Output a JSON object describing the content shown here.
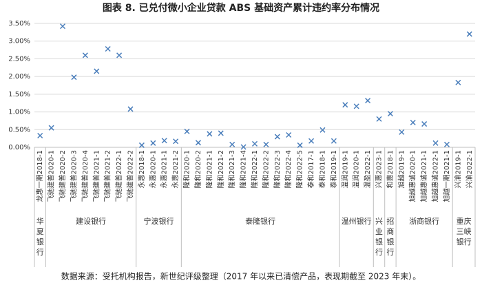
{
  "chart_data": {
    "type": "scatter",
    "title": "图表 8. 已兑付微小企业贷款 ABS 基础资产累计违约率分布情况",
    "source": "数据来源：受托机构报告，新世纪评级整理（2017 年以来已清偿产品，表现期截至 2023 年末）。",
    "color": "#4a7ebb",
    "ylim": [
      0,
      3.5
    ],
    "yticks": [
      {
        "value": 0,
        "label": "0.00%"
      },
      {
        "value": 0.5,
        "label": "0.50%"
      },
      {
        "value": 1,
        "label": "1.00%"
      },
      {
        "value": 1.5,
        "label": "1.50%"
      },
      {
        "value": 2,
        "label": "2.00%"
      },
      {
        "value": 2.5,
        "label": "2.50%"
      },
      {
        "value": 3,
        "label": "3.00%"
      },
      {
        "value": 3.5,
        "label": "3.50%"
      }
    ],
    "grid": true,
    "groups": [
      {
        "name": "华夏银行",
        "categories": [
          "龙惠一期2018-1"
        ],
        "values": [
          0.33
        ]
      },
      {
        "name": "建设银行",
        "categories": [
          "飞驰建普2020-1",
          "飞驰建普2020-2",
          "飞驰建普2020-3",
          "飞驰建普2020-4",
          "飞驰建普2021-1",
          "飞驰建普2021-2",
          "飞驰建普2022-1",
          "飞驰建普2022-2"
        ],
        "values": [
          0.55,
          3.42,
          1.98,
          2.6,
          2.15,
          2.78,
          2.6,
          1.08
        ]
      },
      {
        "name": "宁波银行",
        "categories": [
          "永惠2018-1",
          "永惠2020-1",
          "永惠2021-1",
          "永惠2021-2"
        ],
        "values": [
          0.06,
          0.12,
          0.19,
          0.17
        ]
      },
      {
        "name": "泰隆银行",
        "categories": [
          "隆和2020-1",
          "隆和2020-2",
          "隆和2021-1",
          "隆和2021-2",
          "隆和2021-3",
          "隆和2021-4",
          "隆和2022-1",
          "隆和2022-2",
          "隆和2022-3",
          "隆和2022-4",
          "隆和2022-5",
          "泰和2017-1",
          "泰和2018-1",
          "泰和2019-1"
        ],
        "values": [
          0.45,
          0.13,
          0.38,
          0.4,
          0.08,
          0.01,
          0.1,
          0.08,
          0.3,
          0.35,
          0.06,
          0.18,
          0.49,
          0.18
        ]
      },
      {
        "name": "温州银行",
        "categories": [
          "温润2019-1",
          "温润2020-1",
          "温盈2022-1"
        ],
        "values": [
          1.2,
          1.16,
          1.32
        ]
      },
      {
        "name": "兴业银行",
        "categories": [
          "兴惠2023-1"
        ],
        "values": [
          0.8
        ]
      },
      {
        "name": "招商银行",
        "categories": [
          "和惠2018-1"
        ],
        "values": [
          0.95
        ]
      },
      {
        "name": "浙商银行",
        "categories": [
          "旭越2019-1",
          "旭越惠诚2020-1",
          "旭越惠诚2021-1",
          "旭越惠诚2022-1",
          "旭越一期2021-1"
        ],
        "values": [
          0.43,
          0.7,
          0.66,
          0.12,
          0.08
        ]
      },
      {
        "name": "重庆三峡银行",
        "categories": [
          "兴渝2019-1",
          "兴渝2022-1"
        ],
        "values": [
          1.83,
          3.2
        ]
      }
    ]
  }
}
